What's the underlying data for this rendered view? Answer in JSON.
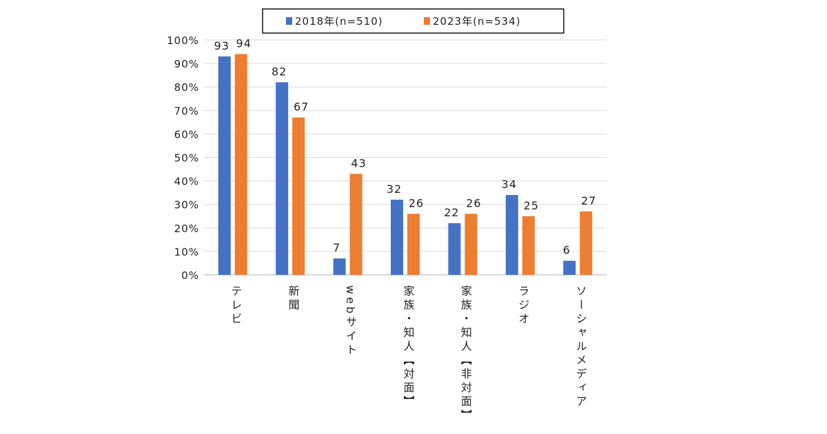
{
  "chart_data": {
    "type": "bar",
    "title": "",
    "xlabel": "",
    "ylabel": "",
    "ylim": [
      0,
      100
    ],
    "yticks": [
      "0%",
      "10%",
      "20%",
      "30%",
      "40%",
      "50%",
      "60%",
      "70%",
      "80%",
      "90%",
      "100%"
    ],
    "grid": true,
    "legend_position": "top",
    "categories": [
      "テレビ",
      "新聞",
      "webサイト",
      "家族・知人【対面】",
      "家族・知人【非対面】",
      "ラジオ",
      "ソーシャルメディア"
    ],
    "series": [
      {
        "name": "2018年(n=510)",
        "color": "#4472C4",
        "values": [
          93,
          82,
          7,
          32,
          22,
          34,
          6
        ]
      },
      {
        "name": "2023年(n=534)",
        "color": "#ED7D31",
        "values": [
          94,
          67,
          43,
          26,
          26,
          25,
          27
        ]
      }
    ]
  }
}
